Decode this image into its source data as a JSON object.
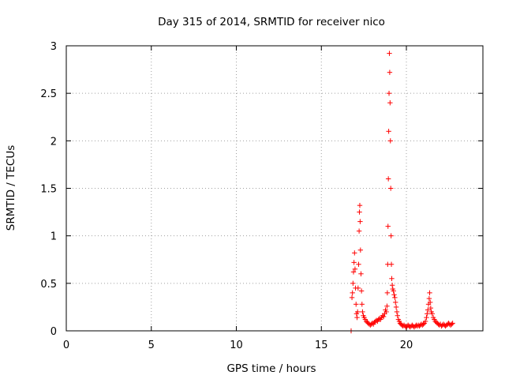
{
  "chart_data": {
    "type": "scatter",
    "title": "Day 315 of 2014, SRMTID for receiver nico",
    "xlabel": "GPS time / hours",
    "ylabel": "SRMTID / TECUs",
    "xlim": [
      0,
      24.5
    ],
    "ylim": [
      0,
      3
    ],
    "grid": true,
    "marker": "+",
    "series_color": "#ff0000",
    "xticks": [
      0,
      5,
      10,
      15,
      20
    ],
    "xtick_labels": [
      "0",
      "5",
      "10",
      "15",
      "20"
    ],
    "yticks": [
      0,
      0.5,
      1,
      1.5,
      2,
      2.5,
      3
    ],
    "ytick_labels": [
      "0",
      "0.5",
      "1",
      "1.5",
      "2",
      "2.5",
      "3"
    ],
    "series": [
      {
        "name": "SRMTID",
        "points": [
          [
            16.75,
            0.0
          ],
          [
            16.8,
            0.35
          ],
          [
            16.83,
            0.4
          ],
          [
            16.86,
            0.5
          ],
          [
            16.89,
            0.62
          ],
          [
            16.92,
            0.72
          ],
          [
            16.95,
            0.82
          ],
          [
            16.98,
            0.65
          ],
          [
            17.01,
            0.45
          ],
          [
            17.04,
            0.28
          ],
          [
            17.07,
            0.18
          ],
          [
            17.1,
            0.14
          ],
          [
            17.13,
            0.2
          ],
          [
            17.16,
            0.45
          ],
          [
            17.19,
            0.7
          ],
          [
            17.22,
            1.05
          ],
          [
            17.24,
            1.25
          ],
          [
            17.26,
            1.32
          ],
          [
            17.28,
            1.15
          ],
          [
            17.3,
            0.85
          ],
          [
            17.33,
            0.6
          ],
          [
            17.36,
            0.42
          ],
          [
            17.39,
            0.28
          ],
          [
            17.42,
            0.2
          ],
          [
            17.47,
            0.16
          ],
          [
            17.52,
            0.14
          ],
          [
            17.58,
            0.12
          ],
          [
            17.64,
            0.1
          ],
          [
            17.7,
            0.09
          ],
          [
            17.76,
            0.08
          ],
          [
            17.82,
            0.07
          ],
          [
            17.88,
            0.06
          ],
          [
            17.94,
            0.07
          ],
          [
            18.0,
            0.08
          ],
          [
            18.06,
            0.07
          ],
          [
            18.12,
            0.09
          ],
          [
            18.18,
            0.1
          ],
          [
            18.24,
            0.11
          ],
          [
            18.3,
            0.1
          ],
          [
            18.36,
            0.12
          ],
          [
            18.42,
            0.13
          ],
          [
            18.48,
            0.12
          ],
          [
            18.54,
            0.14
          ],
          [
            18.6,
            0.16
          ],
          [
            18.66,
            0.15
          ],
          [
            18.72,
            0.18
          ],
          [
            18.77,
            0.22
          ],
          [
            18.82,
            0.2
          ],
          [
            18.86,
            0.26
          ],
          [
            18.88,
            0.4
          ],
          [
            18.9,
            0.7
          ],
          [
            18.92,
            1.1
          ],
          [
            18.94,
            1.6
          ],
          [
            18.96,
            2.1
          ],
          [
            18.98,
            2.5
          ],
          [
            19.0,
            2.92
          ],
          [
            19.02,
            2.72
          ],
          [
            19.04,
            2.4
          ],
          [
            19.06,
            2.0
          ],
          [
            19.08,
            1.5
          ],
          [
            19.1,
            1.0
          ],
          [
            19.12,
            0.7
          ],
          [
            19.14,
            0.55
          ],
          [
            19.17,
            0.48
          ],
          [
            19.2,
            0.44
          ],
          [
            19.24,
            0.42
          ],
          [
            19.28,
            0.38
          ],
          [
            19.32,
            0.35
          ],
          [
            19.36,
            0.3
          ],
          [
            19.4,
            0.25
          ],
          [
            19.44,
            0.2
          ],
          [
            19.48,
            0.16
          ],
          [
            19.53,
            0.12
          ],
          [
            19.58,
            0.1
          ],
          [
            19.63,
            0.08
          ],
          [
            19.68,
            0.07
          ],
          [
            19.74,
            0.06
          ],
          [
            19.8,
            0.05
          ],
          [
            19.86,
            0.06
          ],
          [
            19.92,
            0.05
          ],
          [
            19.98,
            0.04
          ],
          [
            20.04,
            0.05
          ],
          [
            20.1,
            0.06
          ],
          [
            20.16,
            0.05
          ],
          [
            20.22,
            0.04
          ],
          [
            20.28,
            0.05
          ],
          [
            20.34,
            0.06
          ],
          [
            20.4,
            0.05
          ],
          [
            20.46,
            0.04
          ],
          [
            20.52,
            0.05
          ],
          [
            20.58,
            0.06
          ],
          [
            20.64,
            0.05
          ],
          [
            20.7,
            0.06
          ],
          [
            20.76,
            0.05
          ],
          [
            20.82,
            0.06
          ],
          [
            20.88,
            0.07
          ],
          [
            20.94,
            0.06
          ],
          [
            21.0,
            0.07
          ],
          [
            21.06,
            0.08
          ],
          [
            21.12,
            0.1
          ],
          [
            21.18,
            0.14
          ],
          [
            21.22,
            0.18
          ],
          [
            21.26,
            0.22
          ],
          [
            21.3,
            0.28
          ],
          [
            21.34,
            0.34
          ],
          [
            21.37,
            0.4
          ],
          [
            21.4,
            0.3
          ],
          [
            21.43,
            0.24
          ],
          [
            21.47,
            0.2
          ],
          [
            21.52,
            0.18
          ],
          [
            21.58,
            0.14
          ],
          [
            21.64,
            0.12
          ],
          [
            21.7,
            0.1
          ],
          [
            21.76,
            0.09
          ],
          [
            21.82,
            0.08
          ],
          [
            21.88,
            0.07
          ],
          [
            21.94,
            0.06
          ],
          [
            22.0,
            0.07
          ],
          [
            22.06,
            0.05
          ],
          [
            22.12,
            0.06
          ],
          [
            22.18,
            0.07
          ],
          [
            22.24,
            0.06
          ],
          [
            22.3,
            0.05
          ],
          [
            22.36,
            0.06
          ],
          [
            22.42,
            0.07
          ],
          [
            22.48,
            0.08
          ],
          [
            22.54,
            0.07
          ],
          [
            22.6,
            0.06
          ],
          [
            22.66,
            0.07
          ],
          [
            22.72,
            0.08
          ]
        ]
      }
    ]
  }
}
